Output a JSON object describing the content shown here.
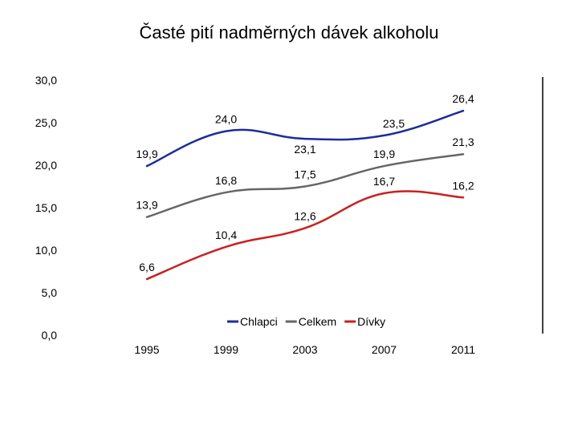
{
  "chart_data": {
    "type": "line",
    "title": "Časté pití nadměrných dávek alkoholu",
    "x": [
      "1995",
      "1999",
      "2003",
      "2007",
      "2011"
    ],
    "ylim": [
      0,
      30
    ],
    "y_ticks": [
      "0,0",
      "5,0",
      "10,0",
      "15,0",
      "20,0",
      "25,0",
      "30,0"
    ],
    "grid": false,
    "legend_position": "bottom",
    "series": [
      {
        "name": "Chlapci",
        "color": "#1c2c9c",
        "values": [
          19.9,
          24.0,
          23.1,
          23.5,
          26.4
        ],
        "labels": [
          "19,9",
          "24,0",
          "23,1",
          "23,5",
          "26,4"
        ]
      },
      {
        "name": "Celkem",
        "color": "#666666",
        "values": [
          13.9,
          16.8,
          17.5,
          19.9,
          21.3
        ],
        "labels": [
          "13,9",
          "16,8",
          "17,5",
          "19,9",
          "21,3"
        ]
      },
      {
        "name": "Dívky",
        "color": "#cc1f1f",
        "values": [
          6.6,
          10.4,
          12.6,
          16.7,
          16.2
        ],
        "labels": [
          "6,6",
          "10,4",
          "12,6",
          "16,7",
          "16,2"
        ]
      }
    ]
  }
}
